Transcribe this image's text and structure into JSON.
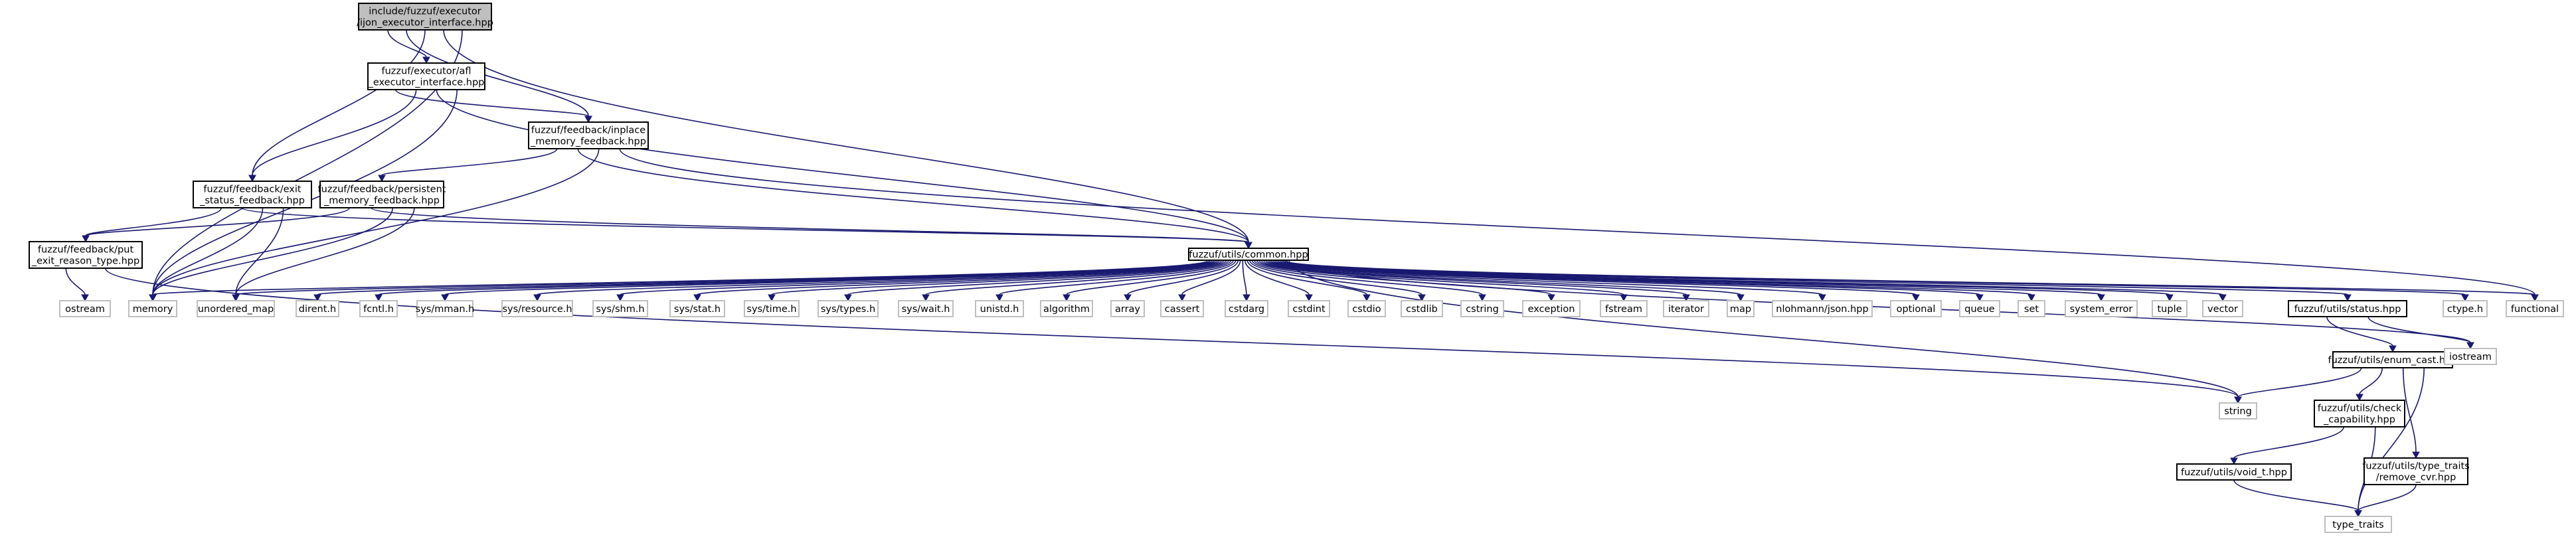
{
  "diagram": {
    "type": "include-dependency-graph",
    "colors": {
      "root_fill": "#bfbfbf",
      "edge": "#191970",
      "leaf_border": "#bfbfbf",
      "node_border": "#000000"
    },
    "nodes": [
      {
        "id": "root",
        "lines": [
          "include/fuzzuf/executor",
          "/ijon_executor_interface.hpp"
        ],
        "kind": "root"
      },
      {
        "id": "afl_exec",
        "lines": [
          "fuzzuf/executor/afl",
          "_executor_interface.hpp"
        ],
        "kind": "internal"
      },
      {
        "id": "inplace",
        "lines": [
          "fuzzuf/feedback/inplace",
          "_memory_feedback.hpp"
        ],
        "kind": "internal"
      },
      {
        "id": "exit_status",
        "lines": [
          "fuzzuf/feedback/exit",
          "_status_feedback.hpp"
        ],
        "kind": "internal"
      },
      {
        "id": "persistent",
        "lines": [
          "fuzzuf/feedback/persistent",
          "_memory_feedback.hpp"
        ],
        "kind": "internal"
      },
      {
        "id": "put_exit",
        "lines": [
          "fuzzuf/feedback/put",
          "_exit_reason_type.hpp"
        ],
        "kind": "internal"
      },
      {
        "id": "common",
        "lines": [
          "fuzzuf/utils/common.hpp"
        ],
        "kind": "internal"
      },
      {
        "id": "status",
        "lines": [
          "fuzzuf/utils/status.hpp"
        ],
        "kind": "internal"
      },
      {
        "id": "enum_cast",
        "lines": [
          "fuzzuf/utils/enum_cast.hpp"
        ],
        "kind": "internal"
      },
      {
        "id": "check_cap",
        "lines": [
          "fuzzuf/utils/check",
          "_capability.hpp"
        ],
        "kind": "internal"
      },
      {
        "id": "void_t",
        "lines": [
          "fuzzuf/utils/void_t.hpp"
        ],
        "kind": "internal"
      },
      {
        "id": "remove_cvr",
        "lines": [
          "fuzzuf/utils/type_traits",
          "/remove_cvr.hpp"
        ],
        "kind": "internal"
      },
      {
        "id": "ostream",
        "lines": [
          "ostream"
        ],
        "kind": "leaf"
      },
      {
        "id": "memory",
        "lines": [
          "memory"
        ],
        "kind": "leaf"
      },
      {
        "id": "unordered_map",
        "lines": [
          "unordered_map"
        ],
        "kind": "leaf"
      },
      {
        "id": "dirent",
        "lines": [
          "dirent.h"
        ],
        "kind": "leaf"
      },
      {
        "id": "fcntl",
        "lines": [
          "fcntl.h"
        ],
        "kind": "leaf"
      },
      {
        "id": "mman",
        "lines": [
          "sys/mman.h"
        ],
        "kind": "leaf"
      },
      {
        "id": "resource",
        "lines": [
          "sys/resource.h"
        ],
        "kind": "leaf"
      },
      {
        "id": "shm",
        "lines": [
          "sys/shm.h"
        ],
        "kind": "leaf"
      },
      {
        "id": "stat",
        "lines": [
          "sys/stat.h"
        ],
        "kind": "leaf"
      },
      {
        "id": "time",
        "lines": [
          "sys/time.h"
        ],
        "kind": "leaf"
      },
      {
        "id": "types",
        "lines": [
          "sys/types.h"
        ],
        "kind": "leaf"
      },
      {
        "id": "wait",
        "lines": [
          "sys/wait.h"
        ],
        "kind": "leaf"
      },
      {
        "id": "unistd",
        "lines": [
          "unistd.h"
        ],
        "kind": "leaf"
      },
      {
        "id": "algorithm",
        "lines": [
          "algorithm"
        ],
        "kind": "leaf"
      },
      {
        "id": "array",
        "lines": [
          "array"
        ],
        "kind": "leaf"
      },
      {
        "id": "cassert",
        "lines": [
          "cassert"
        ],
        "kind": "leaf"
      },
      {
        "id": "cstdarg",
        "lines": [
          "cstdarg"
        ],
        "kind": "leaf"
      },
      {
        "id": "cstdint",
        "lines": [
          "cstdint"
        ],
        "kind": "leaf"
      },
      {
        "id": "cstdio",
        "lines": [
          "cstdio"
        ],
        "kind": "leaf"
      },
      {
        "id": "cstdlib",
        "lines": [
          "cstdlib"
        ],
        "kind": "leaf"
      },
      {
        "id": "cstring",
        "lines": [
          "cstring"
        ],
        "kind": "leaf"
      },
      {
        "id": "exception",
        "lines": [
          "exception"
        ],
        "kind": "leaf"
      },
      {
        "id": "fstream",
        "lines": [
          "fstream"
        ],
        "kind": "leaf"
      },
      {
        "id": "iterator",
        "lines": [
          "iterator"
        ],
        "kind": "leaf"
      },
      {
        "id": "map",
        "lines": [
          "map"
        ],
        "kind": "leaf"
      },
      {
        "id": "json",
        "lines": [
          "nlohmann/json.hpp"
        ],
        "kind": "leaf"
      },
      {
        "id": "optional",
        "lines": [
          "optional"
        ],
        "kind": "leaf"
      },
      {
        "id": "queue",
        "lines": [
          "queue"
        ],
        "kind": "leaf"
      },
      {
        "id": "set",
        "lines": [
          "set"
        ],
        "kind": "leaf"
      },
      {
        "id": "system_error",
        "lines": [
          "system_error"
        ],
        "kind": "leaf"
      },
      {
        "id": "tuple",
        "lines": [
          "tuple"
        ],
        "kind": "leaf"
      },
      {
        "id": "vector",
        "lines": [
          "vector"
        ],
        "kind": "leaf"
      },
      {
        "id": "ctype",
        "lines": [
          "ctype.h"
        ],
        "kind": "leaf"
      },
      {
        "id": "functional",
        "lines": [
          "functional"
        ],
        "kind": "leaf"
      },
      {
        "id": "iostream",
        "lines": [
          "iostream"
        ],
        "kind": "leaf"
      },
      {
        "id": "string",
        "lines": [
          "string"
        ],
        "kind": "leaf"
      },
      {
        "id": "type_traits",
        "lines": [
          "type_traits"
        ],
        "kind": "leaf"
      }
    ],
    "edges": [
      [
        "root",
        "afl_exec"
      ],
      [
        "root",
        "inplace"
      ],
      [
        "root",
        "exit_status"
      ],
      [
        "root",
        "common"
      ],
      [
        "root",
        "memory"
      ],
      [
        "afl_exec",
        "inplace"
      ],
      [
        "afl_exec",
        "exit_status"
      ],
      [
        "afl_exec",
        "common"
      ],
      [
        "afl_exec",
        "memory"
      ],
      [
        "inplace",
        "persistent"
      ],
      [
        "inplace",
        "common"
      ],
      [
        "inplace",
        "memory"
      ],
      [
        "inplace",
        "functional"
      ],
      [
        "exit_status",
        "put_exit"
      ],
      [
        "exit_status",
        "common"
      ],
      [
        "exit_status",
        "memory"
      ],
      [
        "exit_status",
        "unordered_map"
      ],
      [
        "persistent",
        "put_exit"
      ],
      [
        "persistent",
        "common"
      ],
      [
        "persistent",
        "memory"
      ],
      [
        "persistent",
        "unordered_map"
      ],
      [
        "put_exit",
        "ostream"
      ],
      [
        "put_exit",
        "string"
      ],
      [
        "common",
        "memory"
      ],
      [
        "common",
        "unordered_map"
      ],
      [
        "common",
        "dirent"
      ],
      [
        "common",
        "fcntl"
      ],
      [
        "common",
        "mman"
      ],
      [
        "common",
        "resource"
      ],
      [
        "common",
        "shm"
      ],
      [
        "common",
        "stat"
      ],
      [
        "common",
        "time"
      ],
      [
        "common",
        "types"
      ],
      [
        "common",
        "wait"
      ],
      [
        "common",
        "unistd"
      ],
      [
        "common",
        "algorithm"
      ],
      [
        "common",
        "array"
      ],
      [
        "common",
        "cassert"
      ],
      [
        "common",
        "cstdarg"
      ],
      [
        "common",
        "cstdint"
      ],
      [
        "common",
        "cstdio"
      ],
      [
        "common",
        "cstdlib"
      ],
      [
        "common",
        "cstring"
      ],
      [
        "common",
        "exception"
      ],
      [
        "common",
        "fstream"
      ],
      [
        "common",
        "iterator"
      ],
      [
        "common",
        "map"
      ],
      [
        "common",
        "json"
      ],
      [
        "common",
        "optional"
      ],
      [
        "common",
        "queue"
      ],
      [
        "common",
        "set"
      ],
      [
        "common",
        "system_error"
      ],
      [
        "common",
        "tuple"
      ],
      [
        "common",
        "vector"
      ],
      [
        "common",
        "status"
      ],
      [
        "common",
        "ctype"
      ],
      [
        "common",
        "functional"
      ],
      [
        "common",
        "iostream"
      ],
      [
        "common",
        "string"
      ],
      [
        "status",
        "enum_cast"
      ],
      [
        "status",
        "iostream"
      ],
      [
        "enum_cast",
        "string"
      ],
      [
        "enum_cast",
        "check_cap"
      ],
      [
        "enum_cast",
        "remove_cvr"
      ],
      [
        "enum_cast",
        "type_traits"
      ],
      [
        "check_cap",
        "void_t"
      ],
      [
        "check_cap",
        "type_traits"
      ],
      [
        "void_t",
        "type_traits"
      ],
      [
        "remove_cvr",
        "type_traits"
      ]
    ]
  }
}
